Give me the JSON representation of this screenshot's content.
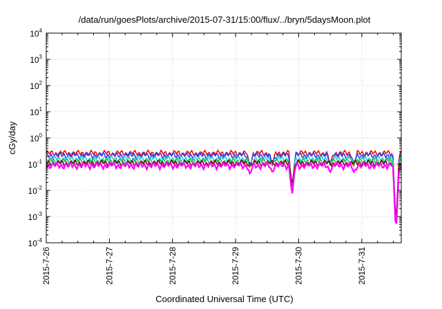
{
  "chart_data": {
    "type": "line",
    "title": "/data/run/goesPlots/archive/2015-07-31/15:00/flux/../bryn/5daysMoon.plot",
    "xlabel": "Coordinated Universal Time (UTC)",
    "ylabel": "cGy/day",
    "yscale": "log",
    "ylim": [
      0.0001,
      10000
    ],
    "xlim": [
      "2015-07-26 00:00",
      "2015-07-31 15:00"
    ],
    "x_ticks": [
      "2015-7-26",
      "2015-7-27",
      "2015-7-28",
      "2015-7-29",
      "2015-7-30",
      "2015-7-31"
    ],
    "y_ticks": [
      {
        "base": "10",
        "exp": "-4",
        "value": 0.0001
      },
      {
        "base": "10",
        "exp": "-3",
        "value": 0.001
      },
      {
        "base": "10",
        "exp": "-2",
        "value": 0.01
      },
      {
        "base": "10",
        "exp": "-1",
        "value": 0.1
      },
      {
        "base": "10",
        "exp": "0",
        "value": 1
      },
      {
        "base": "10",
        "exp": "1",
        "value": 10
      },
      {
        "base": "10",
        "exp": "2",
        "value": 100
      },
      {
        "base": "10",
        "exp": "3",
        "value": 1000
      },
      {
        "base": "10",
        "exp": "4",
        "value": 10000
      }
    ],
    "grid": true,
    "legend": "none",
    "series": [
      {
        "color": "#ff0000",
        "base": 0.26,
        "dip_factor": 1.0
      },
      {
        "color": "#2040ff",
        "base": 0.22,
        "dip_factor": 1.0
      },
      {
        "color": "#20c8e0",
        "base": 0.16,
        "dip_factor": 1.0
      },
      {
        "color": "#20c050",
        "base": 0.13,
        "dip_factor": 1.0
      },
      {
        "color": "#800000",
        "base": 0.11,
        "dip_factor": 1.0
      },
      {
        "color": "#ff00ff",
        "base": 0.09,
        "dip_factor": 2.0
      }
    ],
    "dips": [
      {
        "x": "2015-07-29 05:30",
        "min": 0.04
      },
      {
        "x": "2015-07-29 14:00",
        "min": 0.05
      },
      {
        "x": "2015-07-29 21:30",
        "min": 0.006
      },
      {
        "x": "2015-07-30 12:00",
        "min": 0.05
      },
      {
        "x": "2015-07-30 21:00",
        "min": 0.05
      },
      {
        "x": "2015-07-31 13:00",
        "min": 0.0002
      }
    ]
  }
}
